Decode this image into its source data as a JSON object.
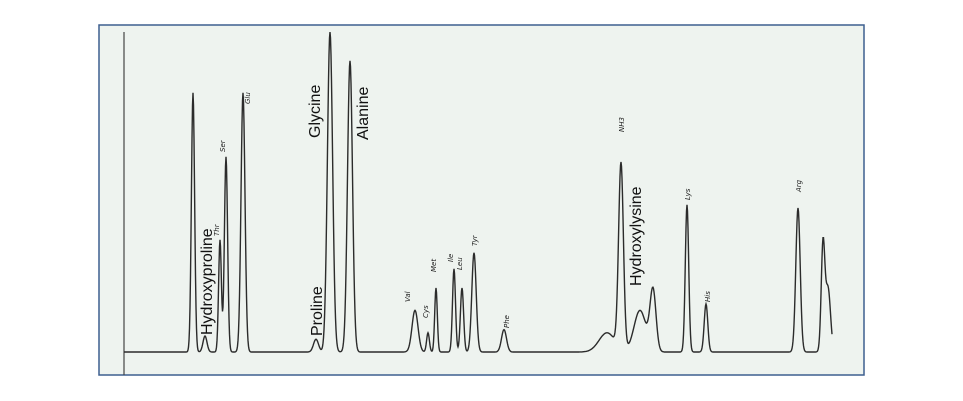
{
  "chart_data": {
    "type": "line",
    "title": "",
    "xlabel": "",
    "ylabel": "",
    "grid": false,
    "colors": {
      "background": "#ffffff",
      "plot_background": "#eef3ef",
      "frame": "#3d5f8f",
      "trace": "#2b2b2b",
      "axis": "#444444"
    },
    "peaks": [
      {
        "label": "Hydroxyproline",
        "style": "typed",
        "height": 0.05
      },
      {
        "label": "",
        "style": "none",
        "height": 0.81
      },
      {
        "label": "Thr",
        "style": "hand",
        "height": 0.35
      },
      {
        "label": "Ser",
        "style": "hand",
        "height": 0.61
      },
      {
        "label": "Glu",
        "style": "hand",
        "height": 0.81
      },
      {
        "label": "Proline",
        "style": "typed",
        "height": 0.04
      },
      {
        "label": "Glycine",
        "style": "typed",
        "height": 1.0
      },
      {
        "label": "Alanine",
        "style": "typed",
        "height": 0.91
      },
      {
        "label": "Val",
        "style": "hand",
        "height": 0.13
      },
      {
        "label": "Cys",
        "style": "hand",
        "height": 0.06
      },
      {
        "label": "Met",
        "style": "hand",
        "height": 0.2
      },
      {
        "label": "Ile",
        "style": "hand",
        "height": 0.26
      },
      {
        "label": "Leu",
        "style": "hand",
        "height": 0.2
      },
      {
        "label": "Tyr",
        "style": "hand",
        "height": 0.31
      },
      {
        "label": "Phe",
        "style": "hand",
        "height": 0.07
      },
      {
        "label": "NH3",
        "style": "hand",
        "height": 0.58
      },
      {
        "label": "Hydroxylysine",
        "style": "typed",
        "height": 0.19
      },
      {
        "label": "Lys",
        "style": "hand",
        "height": 0.46
      },
      {
        "label": "His",
        "style": "hand",
        "height": 0.15
      },
      {
        "label": "Arg",
        "style": "hand",
        "height": 0.45
      }
    ]
  }
}
